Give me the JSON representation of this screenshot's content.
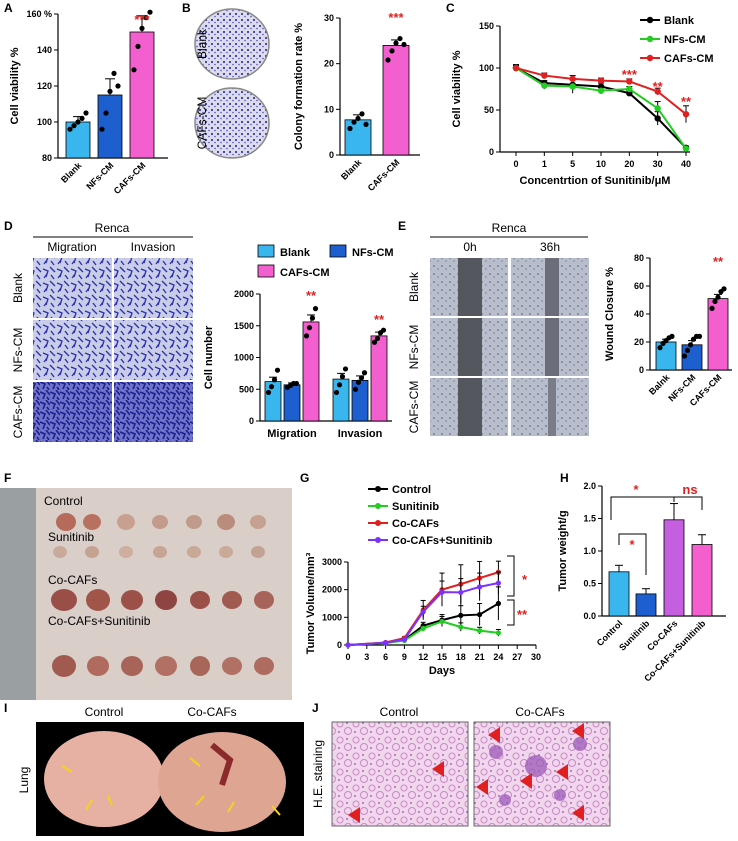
{
  "panel_letters": [
    "A",
    "B",
    "C",
    "D",
    "E",
    "F",
    "G",
    "H",
    "I",
    "J"
  ],
  "colors": {
    "blank": "#3ab6ef",
    "nfs": "#1e5fcf",
    "cafs": "#f45fd0",
    "green": "#22cc22",
    "red": "#e02020",
    "purple": "#7a33ff",
    "black": "#000000"
  },
  "micro_labels": {
    "B_rows": [
      "Blank",
      "CAFs-CM"
    ],
    "D_title": "Renca",
    "D_cols": [
      "Migration",
      "Invasion"
    ],
    "D_rows": [
      "Blank",
      "NFs-CM",
      "CAFs-CM"
    ],
    "E_title": "Renca",
    "E_cols": [
      "0h",
      "36h"
    ],
    "E_rows": [
      "Blank",
      "NFs-CM",
      "CAFs-CM"
    ],
    "F_groups": [
      "Control",
      "Sunitinib",
      "Co-CAFs",
      "Co-CAFs+Sunitinib"
    ],
    "I_cols": [
      "Control",
      "Co-CAFs"
    ],
    "I_row": "Lung",
    "J_cols": [
      "Control",
      "Co-CAFs"
    ],
    "J_row": "H.E. staining"
  },
  "chart_data": [
    {
      "panel": "A",
      "type": "bar",
      "categories": [
        "Blank",
        "NFs-CM",
        "CAFs-CM"
      ],
      "values": [
        100,
        115,
        150
      ],
      "errors": [
        3,
        9,
        9
      ],
      "points": [
        [
          96,
          98,
          100,
          102,
          105
        ],
        [
          96,
          105,
          117,
          127,
          120
        ],
        [
          129,
          142,
          152,
          158,
          161
        ]
      ],
      "ylabel": "Cell viability %",
      "ylim": [
        80,
        160
      ],
      "yticks": [
        80,
        100,
        120,
        140,
        160
      ],
      "ytick_labels": [
        "80",
        "100",
        "120",
        "140",
        "160 %"
      ],
      "annotations": [
        {
          "x": "CAFs-CM",
          "text": "***"
        }
      ]
    },
    {
      "panel": "B",
      "type": "bar",
      "categories": [
        "Blank",
        "CAFs-CM"
      ],
      "values": [
        7.7,
        24
      ],
      "errors": [
        1.1,
        1.2
      ],
      "points": [
        [
          5.8,
          7.2,
          8,
          9,
          6.7
        ],
        [
          20.8,
          22.8,
          24.5,
          25.5,
          24.2
        ]
      ],
      "ylabel": "Colony formation rate %",
      "ylim": [
        0,
        30
      ],
      "yticks": [
        0,
        10,
        20,
        30
      ],
      "annotations": [
        {
          "x": "CAFs-CM",
          "text": "***"
        }
      ]
    },
    {
      "panel": "C",
      "type": "line",
      "x": [
        "0",
        "1",
        "5",
        "10",
        "20",
        "30",
        "40"
      ],
      "series": [
        {
          "name": "Blank",
          "values": [
            100,
            82,
            80,
            78,
            70,
            40,
            5
          ],
          "errors": [
            4,
            3,
            6,
            4,
            3,
            8,
            2
          ]
        },
        {
          "name": "NFs-CM",
          "values": [
            100,
            79,
            78,
            73,
            75,
            52,
            4
          ],
          "errors": [
            4,
            4,
            8,
            4,
            3,
            8,
            2
          ]
        },
        {
          "name": "CAFs-CM",
          "values": [
            100,
            91,
            87,
            85,
            84,
            72,
            45
          ],
          "errors": [
            3,
            3,
            4,
            3,
            3,
            4,
            10
          ]
        }
      ],
      "xlabel": "Concentrtion of Sunitinib/μM",
      "ylabel": "Cell viability %",
      "ylim": [
        0,
        150
      ],
      "yticks": [
        0,
        50,
        100,
        150
      ],
      "annotations": [
        {
          "x": "20",
          "text": "***"
        },
        {
          "x": "30",
          "text": "**"
        },
        {
          "x": "40",
          "text": "**"
        }
      ]
    },
    {
      "panel": "D",
      "type": "bar",
      "categories": [
        "Migration",
        "Invasion"
      ],
      "series": [
        {
          "name": "Blank",
          "values": [
            620,
            660
          ],
          "errors": [
            70,
            90
          ],
          "points": [
            [
              450,
              540,
              650,
              800
            ],
            [
              450,
              570,
              700,
              820
            ]
          ]
        },
        {
          "name": "NFs-CM",
          "values": [
            570,
            640
          ],
          "errors": [
            30,
            70
          ],
          "points": [
            [
              530,
              560,
              590,
              590
            ],
            [
              500,
              610,
              680,
              760
            ]
          ]
        },
        {
          "name": "CAFs-CM",
          "values": [
            1560,
            1340
          ],
          "errors": [
            110,
            60
          ],
          "points": [
            [
              1340,
              1470,
              1620,
              1770
            ],
            [
              1240,
              1300,
              1390,
              1430
            ]
          ]
        }
      ],
      "ylabel": "Cell number",
      "ylim": [
        0,
        2000
      ],
      "yticks": [
        0,
        500,
        1000,
        1500,
        2000
      ],
      "annotations": [
        {
          "x": "Migration",
          "text": "**"
        },
        {
          "x": "Invasion",
          "text": "**"
        }
      ]
    },
    {
      "panel": "E",
      "type": "bar",
      "categories": [
        "Balnk",
        "NFs-CM",
        "CAFs-CM"
      ],
      "values": [
        20,
        18,
        51
      ],
      "errors": [
        2,
        3,
        3
      ],
      "points": [
        [
          16,
          19,
          21,
          23,
          24
        ],
        [
          10,
          14,
          18,
          22,
          24,
          24
        ],
        [
          44,
          49,
          52,
          56,
          58
        ]
      ],
      "ylabel": "Wound Closure %",
      "ylim": [
        0,
        80
      ],
      "yticks": [
        0,
        20,
        40,
        60,
        80
      ],
      "annotations": [
        {
          "x": "CAFs-CM",
          "text": "**"
        }
      ]
    },
    {
      "panel": "G",
      "type": "line",
      "x": [
        0,
        6,
        9,
        12,
        15,
        18,
        21,
        24
      ],
      "xticks": [
        0,
        3,
        6,
        9,
        12,
        15,
        18,
        21,
        24,
        27,
        30
      ],
      "series": [
        {
          "name": "Control",
          "values": [
            0,
            80,
            180,
            700,
            900,
            1070,
            1100,
            1500
          ],
          "errors": [
            0,
            20,
            40,
            120,
            200,
            350,
            400,
            600
          ]
        },
        {
          "name": "Sunitinib",
          "values": [
            0,
            70,
            160,
            600,
            850,
            650,
            520,
            440
          ],
          "errors": [
            0,
            20,
            40,
            100,
            180,
            150,
            120,
            120
          ]
        },
        {
          "name": "Co-CAFs",
          "values": [
            0,
            90,
            250,
            1260,
            2000,
            2200,
            2420,
            2630
          ],
          "errors": [
            0,
            20,
            50,
            350,
            600,
            700,
            600,
            400
          ]
        },
        {
          "name": "Co-CAFs+Sunitinib",
          "values": [
            0,
            80,
            200,
            1200,
            1910,
            1900,
            2100,
            2240
          ],
          "errors": [
            0,
            20,
            40,
            200,
            400,
            500,
            500,
            400
          ]
        }
      ],
      "xlabel": "Days",
      "ylabel": "Tumor Volume/mm³",
      "ylim": [
        0,
        3000
      ],
      "yticks": [
        0,
        1000,
        2000,
        3000
      ],
      "annotations": [
        {
          "text": "*"
        },
        {
          "text": "**"
        }
      ]
    },
    {
      "panel": "H",
      "type": "bar",
      "categories": [
        "Control",
        "Sunitinib",
        "Co-CAFs",
        "Co-CAFs+Sunitinib"
      ],
      "values": [
        0.68,
        0.34,
        1.48,
        1.1
      ],
      "errors": [
        0.1,
        0.08,
        0.25,
        0.15
      ],
      "colors": [
        "#3ab6ef",
        "#1e5fcf",
        "#c55fe0",
        "#f45fd0"
      ],
      "ylabel": "Tumor weight/g",
      "ylim": [
        0,
        2.0
      ],
      "yticks": [
        0.0,
        0.5,
        1.0,
        1.5,
        2.0
      ],
      "ytick_labels": [
        "0.0",
        "0.5",
        "1.0",
        "1.5",
        "2.0"
      ],
      "annotations": [
        {
          "text": "*"
        },
        {
          "text": "*"
        },
        {
          "text": "ns"
        }
      ]
    }
  ]
}
